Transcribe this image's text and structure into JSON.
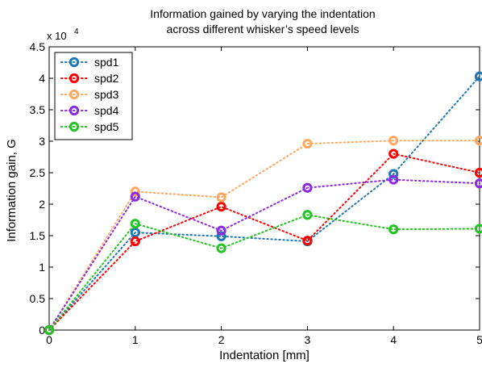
{
  "chart_data": {
    "type": "line",
    "title": "Information gained by varying the indentation\nacross different whisker’s speed levels",
    "title_lines": [
      "Information gained by varying the indentation",
      "across different whisker’s speed levels"
    ],
    "xlabel": "Indentation [mm]",
    "ylabel": "Information gain, G",
    "y_exponent_label": "x 10",
    "y_exponent": "4",
    "xlim": [
      0,
      5
    ],
    "ylim": [
      0,
      45000
    ],
    "x_ticks": [
      0,
      1,
      2,
      3,
      4,
      5
    ],
    "y_ticks": [
      0,
      5000,
      10000,
      15000,
      20000,
      25000,
      30000,
      35000,
      40000,
      45000
    ],
    "y_tick_labels": [
      "0",
      "0.5",
      "1",
      "1.5",
      "2",
      "2.5",
      "3",
      "3.5",
      "4",
      "4.5"
    ],
    "grid": false,
    "legend_position": "top-left",
    "x": [
      0,
      1,
      2,
      3,
      4,
      5
    ],
    "series": [
      {
        "name": "spd1",
        "color": "#1f77b4",
        "values": [
          0,
          15500,
          14900,
          14100,
          24800,
          40300
        ]
      },
      {
        "name": "spd2",
        "color": "#ff0000",
        "values": [
          0,
          14100,
          19600,
          14200,
          28000,
          25000
        ]
      },
      {
        "name": "spd3",
        "color": "#ffa860",
        "values": [
          0,
          22000,
          21100,
          29600,
          30100,
          30100
        ]
      },
      {
        "name": "spd4",
        "color": "#8a2be2",
        "values": [
          0,
          21200,
          15800,
          22600,
          23900,
          23300
        ]
      },
      {
        "name": "spd5",
        "color": "#22c322",
        "values": [
          0,
          16900,
          13000,
          18300,
          16000,
          16100
        ]
      }
    ]
  }
}
